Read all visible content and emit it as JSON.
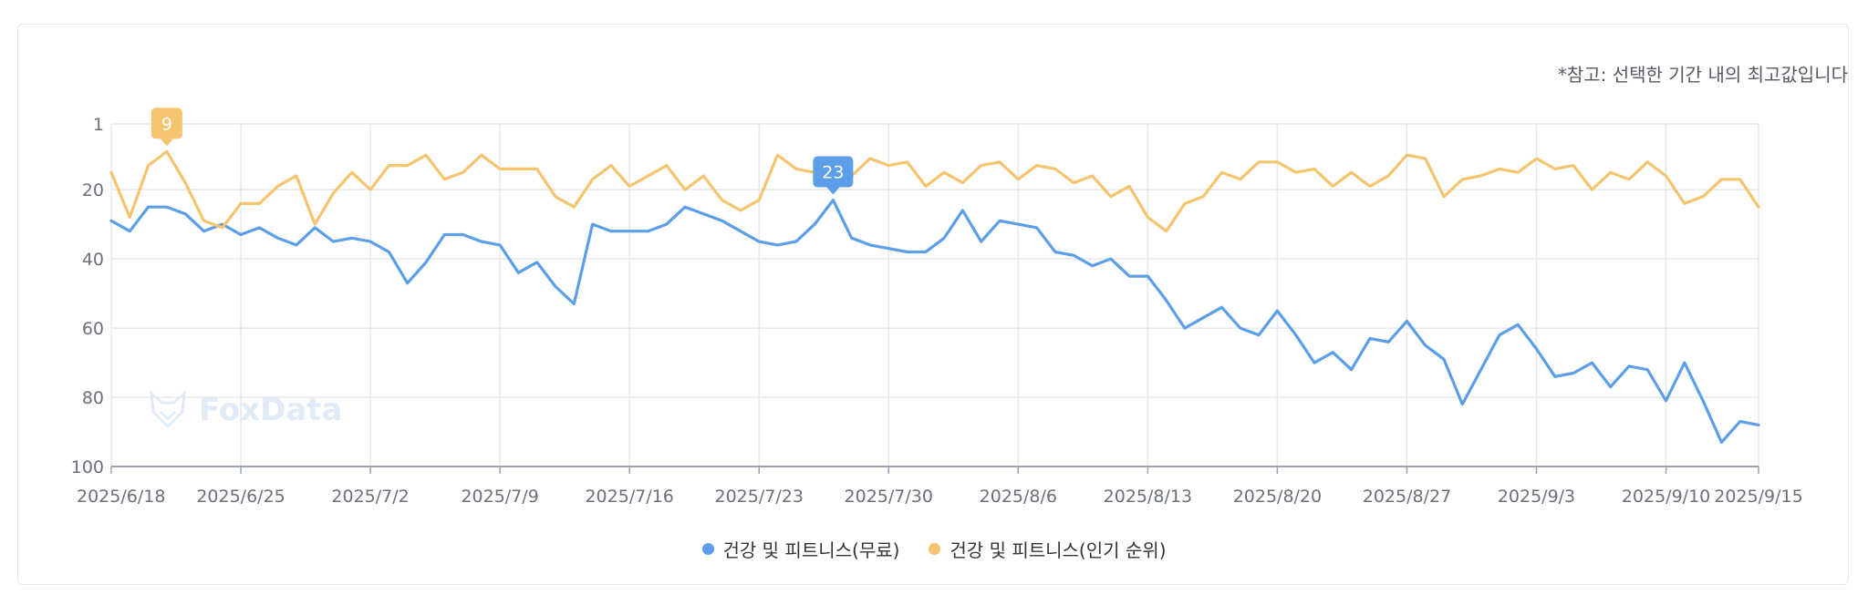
{
  "note": "*참고: 선택한 기간 내의 최고값입니다",
  "watermark": "FoxData",
  "colors": {
    "free": "#5c9ee8",
    "popular": "#f5c46f",
    "grid": "#e6e8ec",
    "axis": "#9aa3ad",
    "tick": "#6b7079"
  },
  "chart_data": {
    "type": "line",
    "y_inverted": true,
    "ylim": [
      1,
      100
    ],
    "y_ticks": [
      1,
      20,
      40,
      60,
      80,
      100
    ],
    "x_ticks": [
      "2025/6/18",
      "2025/6/25",
      "2025/7/2",
      "2025/7/9",
      "2025/7/16",
      "2025/7/23",
      "2025/7/30",
      "2025/8/6",
      "2025/8/13",
      "2025/8/20",
      "2025/8/27",
      "2025/9/3",
      "2025/9/10",
      "2025/9/15"
    ],
    "grid": true,
    "legend_position": "bottom",
    "series": [
      {
        "name": "건강 및 피트니스(무료)",
        "color": "#5c9ee8",
        "values": [
          29,
          32,
          25,
          25,
          27,
          32,
          30,
          33,
          31,
          34,
          36,
          31,
          35,
          34,
          35,
          38,
          47,
          41,
          33,
          33,
          35,
          36,
          44,
          41,
          48,
          53,
          30,
          32,
          32,
          32,
          30,
          25,
          27,
          29,
          32,
          35,
          36,
          35,
          30,
          23,
          34,
          36,
          37,
          38,
          38,
          34,
          26,
          35,
          29,
          30,
          31,
          38,
          39,
          42,
          40,
          45,
          45,
          52,
          60,
          57,
          54,
          60,
          62,
          55,
          62,
          70,
          67,
          72,
          63,
          64,
          58,
          65,
          69,
          82,
          72,
          62,
          59,
          66,
          74,
          73,
          70,
          77,
          71,
          72,
          81,
          70,
          81,
          93,
          87,
          88
        ],
        "peak": {
          "label": "23"
        }
      },
      {
        "name": "건강 및 피트니스(인기 순위)",
        "color": "#f5c46f",
        "values": [
          15,
          28,
          13,
          9,
          18,
          29,
          31,
          24,
          24,
          19,
          16,
          30,
          21,
          15,
          20,
          13,
          13,
          10,
          17,
          15,
          10,
          14,
          14,
          14,
          22,
          25,
          17,
          13,
          19,
          16,
          13,
          20,
          16,
          23,
          26,
          23,
          10,
          14,
          15,
          13,
          16,
          11,
          13,
          12,
          19,
          15,
          18,
          13,
          12,
          17,
          13,
          14,
          18,
          16,
          22,
          19,
          28,
          32,
          24,
          22,
          15,
          17,
          12,
          12,
          15,
          14,
          19,
          15,
          19,
          16,
          10,
          11,
          22,
          17,
          16,
          14,
          15,
          11,
          14,
          13,
          20,
          15,
          17,
          12,
          16,
          24,
          22,
          17,
          17,
          25
        ],
        "peak": {
          "label": "9"
        }
      }
    ]
  }
}
